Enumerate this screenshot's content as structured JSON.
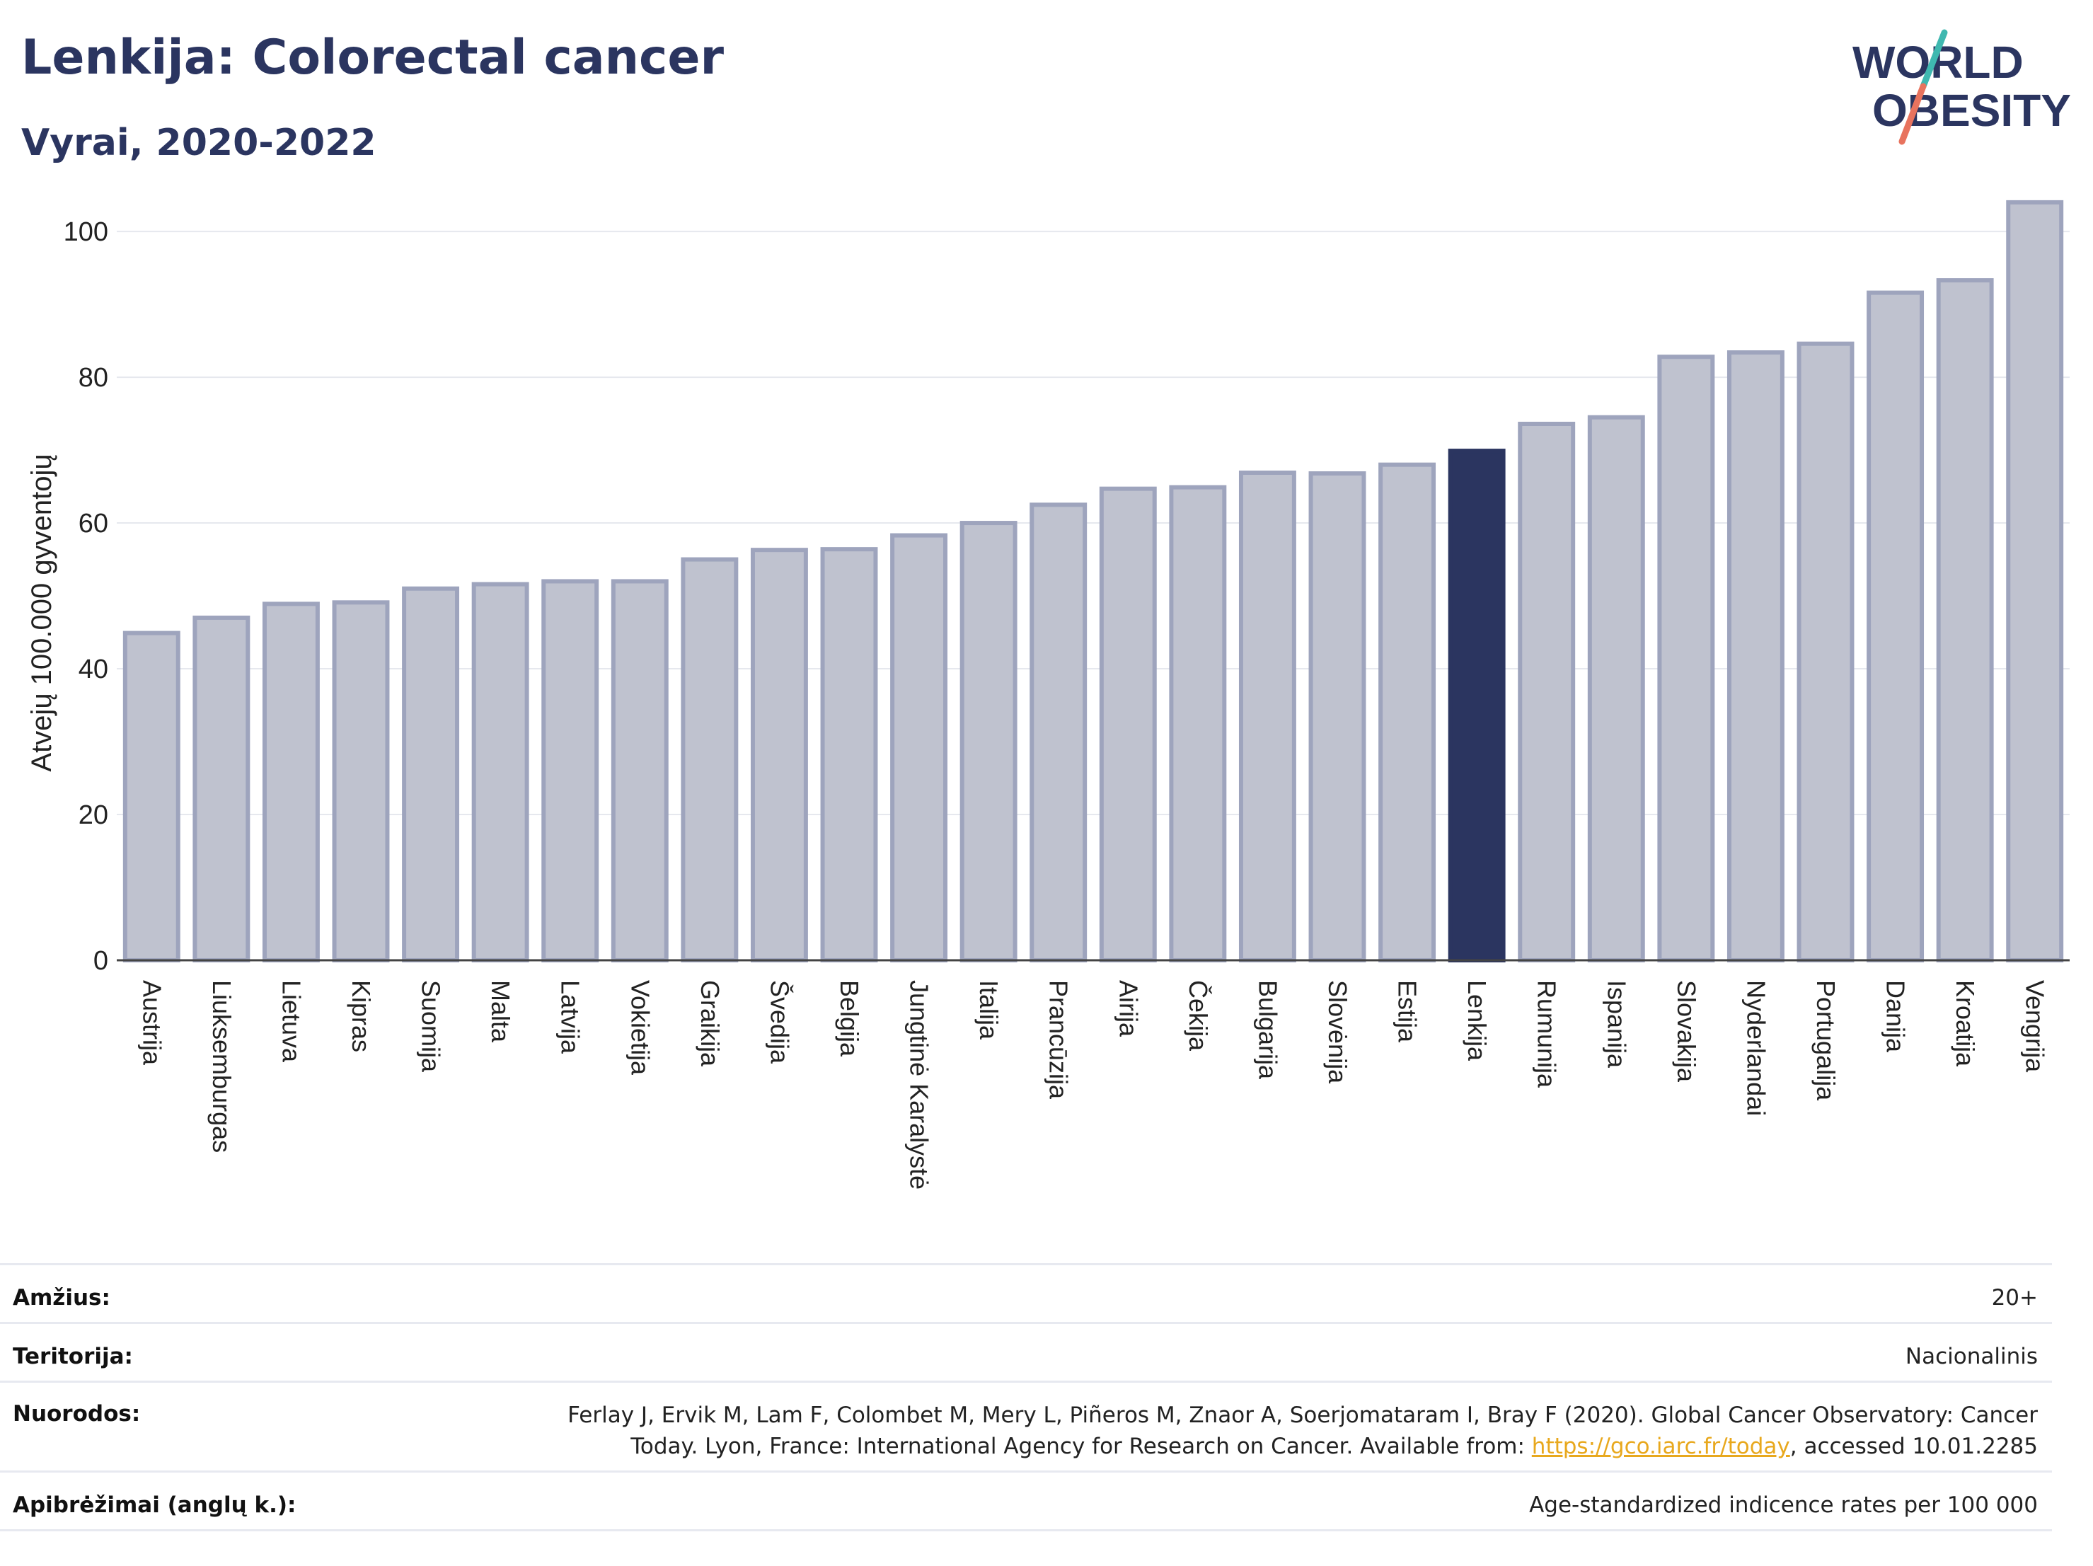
{
  "header": {
    "title": "Lenkija: Colorectal cancer",
    "subtitle": "Vyrai, 2020-2022",
    "logo_line1": "WORLD",
    "logo_line2": "OBESITY"
  },
  "chart_data": {
    "type": "bar",
    "title": "Lenkija: Colorectal cancer",
    "subtitle": "Vyrai, 2020-2022",
    "xlabel": "",
    "ylabel": "Atvejų 100.000 gyventojų",
    "ylim": [
      0,
      107
    ],
    "yticks": [
      0,
      20,
      40,
      60,
      80,
      100
    ],
    "grid": true,
    "highlight_category": "Lenkija",
    "categories": [
      "Austrija",
      "Liuksemburgas",
      "Lietuva",
      "Kipras",
      "Suomija",
      "Malta",
      "Latvija",
      "Vokietija",
      "Graikija",
      "Švedija",
      "Belgija",
      "Jungtinė Karalystė",
      "Italija",
      "Prancūzija",
      "Airija",
      "Čekija",
      "Bulgarija",
      "Slovėnija",
      "Estija",
      "Lenkija",
      "Rumunija",
      "Ispanija",
      "Slovakija",
      "Nyderlandai",
      "Portugalija",
      "Danija",
      "Kroatija",
      "Vengrija"
    ],
    "values": [
      44.9,
      47.0,
      48.9,
      49.1,
      51.0,
      51.6,
      52.0,
      52.0,
      55.0,
      56.3,
      56.4,
      58.3,
      60.0,
      62.5,
      64.7,
      64.9,
      66.9,
      66.8,
      68.0,
      69.9,
      73.6,
      74.5,
      82.8,
      83.4,
      84.6,
      91.6,
      93.3,
      104.0
    ]
  },
  "colors": {
    "bar": "#bfc2cf",
    "bar_border": "#9ea4bd",
    "highlight": "#2b3560",
    "title": "#2b3560",
    "logo_teal": "#3fb8b0",
    "logo_coral": "#e8735e"
  },
  "info": {
    "age_label": "Amžius:",
    "age_value": "20+",
    "territory_label": "Teritorija:",
    "territory_value": "Nacionalinis",
    "references_label": "Nuorodos:",
    "references_line1": "Ferlay J, Ervik M, Lam F, Colombet M, Mery L, Piñeros M, Znaor A, Soerjomataram I, Bray F (2020). Global Cancer Observatory: Cancer",
    "references_line2_pre": "Today. Lyon, France: International Agency for Research on Cancer. Available from: ",
    "references_link": "https://gco.iarc.fr/today",
    "references_line2_post": ", accessed 10.01.2285",
    "definitions_label": "Apibrėžimai (anglų k.):",
    "definitions_value": "Age-standardized indicence rates per 100 000"
  }
}
